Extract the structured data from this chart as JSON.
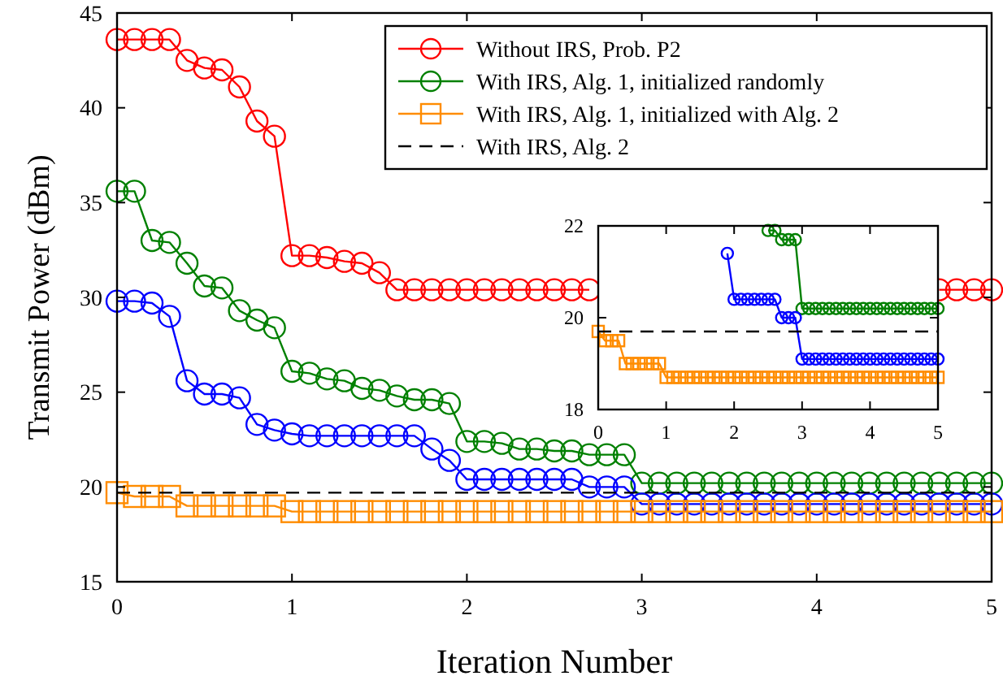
{
  "chart_data": [
    {
      "type": "line",
      "xlabel": "Iteration Number",
      "ylabel": "Transmit Power (dBm)",
      "xlim": [
        0,
        5
      ],
      "ylim": [
        15,
        45
      ],
      "xticks": [
        0,
        1,
        2,
        3,
        4,
        5
      ],
      "yticks": [
        15,
        20,
        25,
        30,
        35,
        40,
        45
      ],
      "legend": "top right",
      "x": [
        0,
        0.1,
        0.2,
        0.3,
        0.4,
        0.5,
        0.6,
        0.7,
        0.8,
        0.9,
        1,
        1.1,
        1.2,
        1.3,
        1.4,
        1.5,
        1.6,
        1.7,
        1.8,
        1.9,
        2,
        2.1,
        2.2,
        2.3,
        2.4,
        2.5,
        2.6,
        2.7,
        2.8,
        2.9,
        3,
        3.1,
        3.2,
        3.3,
        3.4,
        3.5,
        3.6,
        3.7,
        3.8,
        3.9,
        4,
        4.1,
        4.2,
        4.3,
        4.4,
        4.5,
        4.6,
        4.7,
        4.8,
        4.9,
        5
      ],
      "series": [
        {
          "name": "Without IRS, Prob. P2",
          "color": "#ff0000",
          "marker": "circle",
          "values": [
            43.6,
            43.6,
            43.6,
            43.6,
            42.5,
            42.1,
            42.0,
            41.1,
            39.3,
            38.5,
            32.2,
            32.2,
            32.1,
            31.9,
            31.8,
            31.3,
            30.4,
            30.4,
            30.4,
            30.4,
            30.4,
            30.4,
            30.4,
            30.4,
            30.4,
            30.4,
            30.4,
            30.4,
            null,
            null,
            null,
            null,
            null,
            null,
            null,
            null,
            null,
            null,
            null,
            null,
            null,
            null,
            null,
            null,
            null,
            null,
            null,
            30.4,
            30.4,
            30.4,
            30.4
          ]
        },
        {
          "name": "With IRS, Alg. 1, initialized randomly",
          "color": "#008000",
          "marker": "circle",
          "values": [
            35.6,
            35.6,
            33.0,
            32.9,
            31.8,
            30.6,
            30.5,
            29.3,
            28.8,
            28.4,
            26.1,
            26.0,
            25.7,
            25.6,
            25.2,
            25.1,
            24.8,
            24.6,
            24.6,
            24.4,
            22.4,
            22.4,
            22.3,
            22.0,
            22.0,
            21.9,
            21.9,
            21.7,
            21.7,
            21.7,
            20.2,
            20.2,
            20.2,
            20.2,
            20.2,
            20.2,
            20.2,
            20.2,
            20.2,
            20.2,
            20.2,
            20.2,
            20.2,
            20.2,
            20.2,
            20.2,
            20.2,
            20.2,
            20.2,
            20.2,
            20.2
          ]
        },
        {
          "color": "#0000ff",
          "marker": "circle",
          "values": [
            29.8,
            29.8,
            29.7,
            29.0,
            25.6,
            24.9,
            24.9,
            24.7,
            23.3,
            23.0,
            22.8,
            22.7,
            22.7,
            22.7,
            22.7,
            22.7,
            22.7,
            22.7,
            22.0,
            21.4,
            20.4,
            20.4,
            20.4,
            20.4,
            20.4,
            20.4,
            20.4,
            20.0,
            20.0,
            20.0,
            19.1,
            19.1,
            19.1,
            19.1,
            19.1,
            19.1,
            19.1,
            19.1,
            19.1,
            19.1,
            19.1,
            19.1,
            19.1,
            19.1,
            19.1,
            19.1,
            19.1,
            19.1,
            19.1,
            19.1,
            19.1
          ]
        },
        {
          "name": "With IRS, Alg. 1, initialized with Alg. 2",
          "color": "#ff8c00",
          "marker": "square",
          "values": [
            19.7,
            19.5,
            19.5,
            19.5,
            19.0,
            19.0,
            19.0,
            19.0,
            19.0,
            19.0,
            18.7,
            18.7,
            18.7,
            18.7,
            18.7,
            18.7,
            18.7,
            18.7,
            18.7,
            18.7,
            18.7,
            18.7,
            18.7,
            18.7,
            18.7,
            18.7,
            18.7,
            18.7,
            18.7,
            18.7,
            18.7,
            18.7,
            18.7,
            18.7,
            18.7,
            18.7,
            18.7,
            18.7,
            18.7,
            18.7,
            18.7,
            18.7,
            18.7,
            18.7,
            18.7,
            18.7,
            18.7,
            18.7,
            18.7,
            18.7,
            18.7
          ]
        },
        {
          "name": "With IRS, Alg. 2",
          "color": "#000000",
          "marker": "none",
          "line_style": "dashed",
          "values": [
            19.7,
            19.7,
            19.7,
            19.7,
            19.7,
            19.7,
            19.7,
            19.7,
            19.7,
            19.7,
            19.7,
            19.7,
            19.7,
            19.7,
            19.7,
            19.7,
            19.7,
            19.7,
            19.7,
            19.7,
            19.7,
            19.7,
            19.7,
            19.7,
            19.7,
            19.7,
            19.7,
            19.7,
            19.7,
            19.7,
            19.7,
            19.7,
            19.7,
            19.7,
            19.7,
            19.7,
            19.7,
            19.7,
            19.7,
            19.7,
            19.7,
            19.7,
            19.7,
            19.7,
            19.7,
            19.7,
            19.7,
            19.7,
            19.7,
            19.7,
            19.7
          ]
        }
      ]
    },
    {
      "type": "line",
      "xlim": [
        0,
        5
      ],
      "ylim": [
        18,
        22
      ],
      "xticks": [
        0,
        1,
        2,
        3,
        4,
        5
      ],
      "yticks": [
        18,
        20,
        22
      ],
      "x": [
        0,
        0.1,
        0.2,
        0.3,
        0.4,
        0.5,
        0.6,
        0.7,
        0.8,
        0.9,
        1,
        1.1,
        1.2,
        1.3,
        1.4,
        1.5,
        1.6,
        1.7,
        1.8,
        1.9,
        2,
        2.1,
        2.2,
        2.3,
        2.4,
        2.5,
        2.6,
        2.7,
        2.8,
        2.9,
        3,
        3.1,
        3.2,
        3.3,
        3.4,
        3.5,
        3.6,
        3.7,
        3.8,
        3.9,
        4,
        4.1,
        4.2,
        4.3,
        4.4,
        4.5,
        4.6,
        4.7,
        4.8,
        4.9,
        5
      ],
      "series": [
        {
          "color": "#008000",
          "marker": "circle",
          "values": [
            null,
            null,
            null,
            null,
            null,
            null,
            null,
            null,
            null,
            null,
            null,
            null,
            null,
            null,
            null,
            null,
            null,
            null,
            null,
            null,
            null,
            null,
            null,
            null,
            null,
            21.9,
            21.9,
            21.7,
            21.7,
            21.7,
            20.2,
            20.2,
            20.2,
            20.2,
            20.2,
            20.2,
            20.2,
            20.2,
            20.2,
            20.2,
            20.2,
            20.2,
            20.2,
            20.2,
            20.2,
            20.2,
            20.2,
            20.2,
            20.2,
            20.2,
            20.2
          ]
        },
        {
          "color": "#0000ff",
          "marker": "circle",
          "values": [
            null,
            null,
            null,
            null,
            null,
            null,
            null,
            null,
            null,
            null,
            null,
            null,
            null,
            null,
            null,
            null,
            null,
            null,
            null,
            21.4,
            20.4,
            20.4,
            20.4,
            20.4,
            20.4,
            20.4,
            20.4,
            20.0,
            20.0,
            20.0,
            19.1,
            19.1,
            19.1,
            19.1,
            19.1,
            19.1,
            19.1,
            19.1,
            19.1,
            19.1,
            19.1,
            19.1,
            19.1,
            19.1,
            19.1,
            19.1,
            19.1,
            19.1,
            19.1,
            19.1,
            19.1
          ]
        },
        {
          "color": "#ff8c00",
          "marker": "square",
          "values": [
            19.7,
            19.5,
            19.5,
            19.5,
            19.0,
            19.0,
            19.0,
            19.0,
            19.0,
            19.0,
            18.7,
            18.7,
            18.7,
            18.7,
            18.7,
            18.7,
            18.7,
            18.7,
            18.7,
            18.7,
            18.7,
            18.7,
            18.7,
            18.7,
            18.7,
            18.7,
            18.7,
            18.7,
            18.7,
            18.7,
            18.7,
            18.7,
            18.7,
            18.7,
            18.7,
            18.7,
            18.7,
            18.7,
            18.7,
            18.7,
            18.7,
            18.7,
            18.7,
            18.7,
            18.7,
            18.7,
            18.7,
            18.7,
            18.7,
            18.7,
            18.7
          ]
        },
        {
          "color": "#000000",
          "marker": "none",
          "line_style": "dashed",
          "values": [
            19.7,
            19.7,
            19.7,
            19.7,
            19.7,
            19.7,
            19.7,
            19.7,
            19.7,
            19.7,
            19.7,
            19.7,
            19.7,
            19.7,
            19.7,
            19.7,
            19.7,
            19.7,
            19.7,
            19.7,
            19.7,
            19.7,
            19.7,
            19.7,
            19.7,
            19.7,
            19.7,
            19.7,
            19.7,
            19.7,
            19.7,
            19.7,
            19.7,
            19.7,
            19.7,
            19.7,
            19.7,
            19.7,
            19.7,
            19.7,
            19.7,
            19.7,
            19.7,
            19.7,
            19.7,
            19.7,
            19.7,
            19.7,
            19.7,
            19.7,
            19.7
          ]
        }
      ]
    }
  ]
}
